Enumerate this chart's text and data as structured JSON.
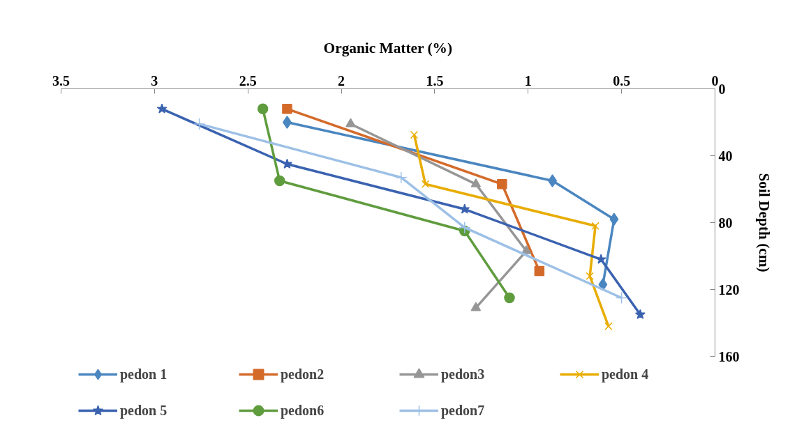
{
  "chart_data": {
    "type": "line",
    "xlabel": "Organic Matter (%)",
    "ylabel": "Soil Depth (cm)",
    "xlim": [
      3.5,
      0
    ],
    "xticks": [
      3.5,
      3,
      2.5,
      2,
      1.5,
      1,
      0.5,
      0
    ],
    "ylim": [
      160,
      0
    ],
    "yticks": [
      0,
      40,
      80,
      120,
      160
    ],
    "grid": false,
    "legend": "bottom",
    "line_style": "solid",
    "series": [
      {
        "name": "pedon 1",
        "color": "#4a86c0",
        "marker": "diamond",
        "x": [
          2.29,
          0.87,
          0.54,
          0.6
        ],
        "values": [
          20,
          55,
          78,
          117
        ]
      },
      {
        "name": "pedon2",
        "color": "#d46a2a",
        "marker": "square",
        "x": [
          2.29,
          1.14,
          0.94
        ],
        "values": [
          12,
          57,
          109
        ]
      },
      {
        "name": "pedon3",
        "color": "#969696",
        "marker": "triangle",
        "x": [
          1.95,
          1.28,
          1.01,
          1.28
        ],
        "values": [
          21,
          57,
          97,
          131
        ]
      },
      {
        "name": "pedon 4",
        "color": "#e8ac00",
        "marker": "x",
        "x": [
          1.61,
          1.55,
          0.64,
          0.67,
          0.57
        ],
        "values": [
          27.5,
          57,
          82,
          112,
          142
        ]
      },
      {
        "name": "pedon 5",
        "color": "#3a62b0",
        "marker": "star",
        "x": [
          2.96,
          2.29,
          1.34,
          0.61,
          0.4
        ],
        "values": [
          12,
          45,
          72,
          102,
          135
        ]
      },
      {
        "name": "pedon6",
        "color": "#5f9c3e",
        "marker": "circle",
        "x": [
          2.42,
          2.33,
          1.34,
          1.1
        ],
        "values": [
          12,
          55,
          85,
          125
        ]
      },
      {
        "name": "pedon7",
        "color": "#9dc0e6",
        "marker": "cross",
        "x": [
          2.76,
          1.68,
          1.34,
          0.5
        ],
        "values": [
          21,
          53,
          83,
          125
        ]
      }
    ]
  }
}
